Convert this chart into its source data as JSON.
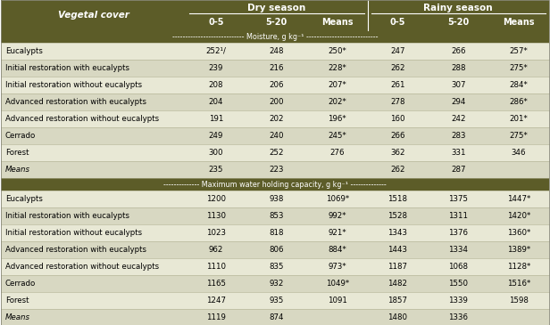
{
  "header_bg": "#5c5c28",
  "header_text": "#ffffff",
  "row_bg_even": "#e8e8d5",
  "row_bg_odd": "#d8d8c2",
  "sep_bg": "#5c5c28",
  "sep_text": "#ffffff",
  "col_header": "Vegetal cover",
  "dry_season": "Dry season",
  "rainy_season": "Rainy season",
  "subcols": [
    "0-5",
    "5-20",
    "Means",
    "0-5",
    "5-20",
    "Means"
  ],
  "moisture_label": "---------------------------- Moisture, g kg⁻¹ ----------------------------",
  "mwhc_label": "-------------- Maximum water holding capacity, g kg⁻¹ --------------",
  "moisture_rows": [
    [
      "Eucalypts",
      "252¹/",
      "248",
      "250*",
      "247",
      "266",
      "257*"
    ],
    [
      "Initial restoration with eucalypts",
      "239",
      "216",
      "228*",
      "262",
      "288",
      "275*"
    ],
    [
      "Initial restoration without eucalypts",
      "208",
      "206",
      "207*",
      "261",
      "307",
      "284*"
    ],
    [
      "Advanced restoration with eucalypts",
      "204",
      "200",
      "202*",
      "278",
      "294",
      "286*"
    ],
    [
      "Advanced restoration without eucalypts",
      "191",
      "202",
      "196*",
      "160",
      "242",
      "201*"
    ],
    [
      "Cerrado",
      "249",
      "240",
      "245*",
      "266",
      "283",
      "275*"
    ],
    [
      "Forest",
      "300",
      "252",
      "276",
      "362",
      "331",
      "346"
    ],
    [
      "Means",
      "235",
      "223",
      "",
      "262",
      "287",
      ""
    ]
  ],
  "mwhc_rows": [
    [
      "Eucalypts",
      "1200",
      "938",
      "1069*",
      "1518",
      "1375",
      "1447*"
    ],
    [
      "Initial restoration with eucalypts",
      "1130",
      "853",
      "992*",
      "1528",
      "1311",
      "1420*"
    ],
    [
      "Initial restoration without eucalypts",
      "1023",
      "818",
      "921*",
      "1343",
      "1376",
      "1360*"
    ],
    [
      "Advanced restoration with eucalypts",
      "962",
      "806",
      "884*",
      "1443",
      "1334",
      "1389*"
    ],
    [
      "Advanced restoration without eucalypts",
      "1110",
      "835",
      "973*",
      "1187",
      "1068",
      "1128*"
    ],
    [
      "Cerrado",
      "1165",
      "932",
      "1049*",
      "1482",
      "1550",
      "1516*"
    ],
    [
      "Forest",
      "1247",
      "935",
      "1091",
      "1857",
      "1339",
      "1598"
    ],
    [
      "Means",
      "1119",
      "874",
      "",
      "1480",
      "1336",
      ""
    ]
  ]
}
